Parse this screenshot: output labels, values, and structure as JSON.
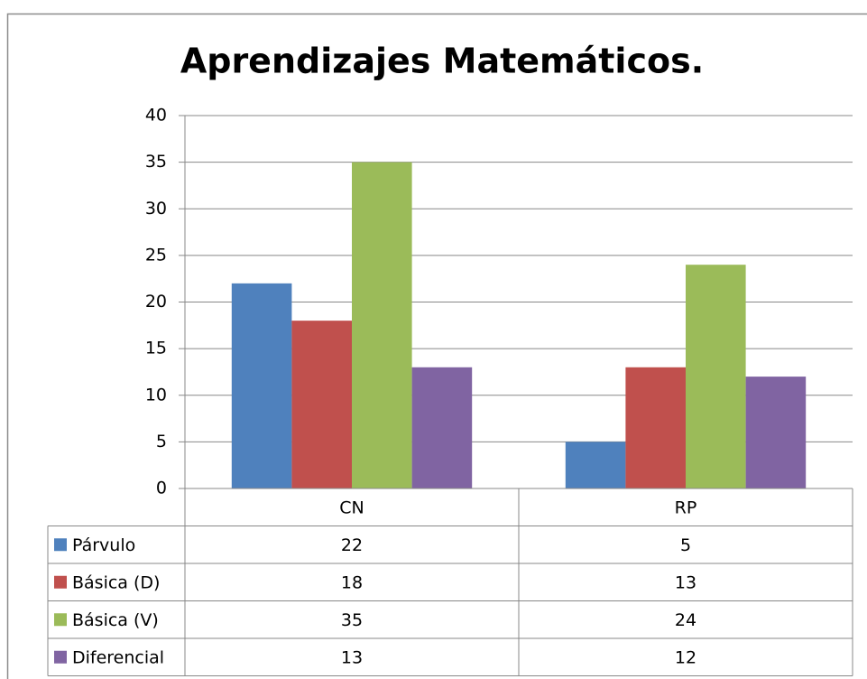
{
  "chart_data": {
    "type": "bar",
    "title": "Aprendizajes Matemáticos.",
    "categories": [
      "CN",
      "RP"
    ],
    "series": [
      {
        "name": "Párvulo",
        "color": "#4f81bd",
        "values": [
          22,
          5
        ]
      },
      {
        "name": "Básica (D)",
        "color": "#c0504d",
        "values": [
          18,
          13
        ]
      },
      {
        "name": "Básica (V)",
        "color": "#9bbb59",
        "values": [
          35,
          24
        ]
      },
      {
        "name": "Diferencial",
        "color": "#8064a2",
        "values": [
          13,
          12
        ]
      }
    ],
    "ylim": [
      0,
      40
    ],
    "yticks": [
      0,
      5,
      10,
      15,
      20,
      25,
      30,
      35,
      40
    ],
    "grid": true,
    "data_table": true
  }
}
